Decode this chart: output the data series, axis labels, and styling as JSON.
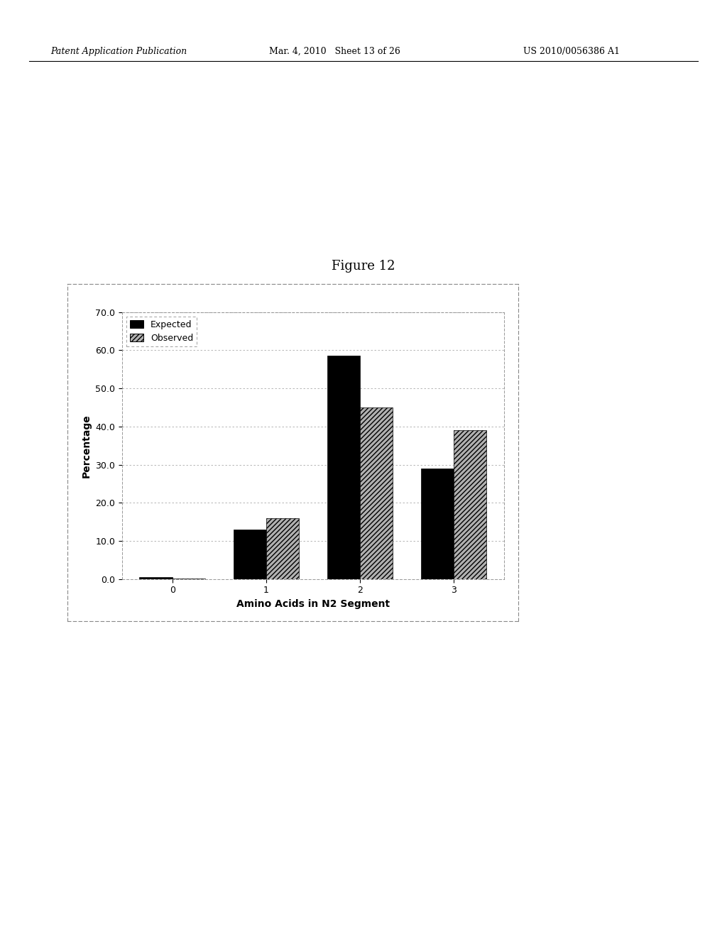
{
  "title": "Figure 12",
  "xlabel": "Amino Acids in N2 Segment",
  "ylabel": "Percentage",
  "categories": [
    0,
    1,
    2,
    3
  ],
  "expected": [
    0.5,
    13.0,
    58.5,
    29.0
  ],
  "observed": [
    0.1,
    16.0,
    45.0,
    39.0
  ],
  "ylim": [
    0.0,
    70.0
  ],
  "yticks": [
    0.0,
    10.0,
    20.0,
    30.0,
    40.0,
    50.0,
    60.0,
    70.0
  ],
  "bar_width": 0.35,
  "expected_color": "#000000",
  "observed_color": "#b0b0b0",
  "background_color": "#ffffff",
  "legend_expected": "Expected",
  "legend_observed": "Observed",
  "title_fontsize": 13,
  "axis_fontsize": 10,
  "tick_fontsize": 9,
  "legend_fontsize": 9,
  "header_left": "Patent Application Publication",
  "header_mid": "Mar. 4, 2010   Sheet 13 of 26",
  "header_right": "US 2010/0056386 A1",
  "header_fontsize": 9
}
